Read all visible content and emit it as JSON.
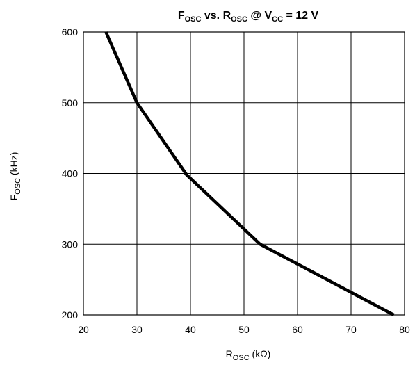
{
  "chart_data": {
    "type": "line",
    "title": {
      "parts": [
        {
          "text": "F",
          "sub": false
        },
        {
          "text": "OSC",
          "sub": true
        },
        {
          "text": " vs. R",
          "sub": false
        },
        {
          "text": "OSC",
          "sub": true
        },
        {
          "text": " @ V",
          "sub": false
        },
        {
          "text": "CC",
          "sub": true
        },
        {
          "text": " = 12 V",
          "sub": false
        }
      ]
    },
    "xlabel": {
      "parts": [
        {
          "text": "R",
          "sub": false
        },
        {
          "text": "OSC",
          "sub": true
        },
        {
          "text": " (kΩ)",
          "sub": false
        }
      ]
    },
    "ylabel": {
      "parts": [
        {
          "text": "F",
          "sub": false
        },
        {
          "text": "OSC",
          "sub": true
        },
        {
          "text": "  (kHz)",
          "sub": false
        }
      ]
    },
    "xlim": [
      20,
      80
    ],
    "ylim": [
      200,
      600
    ],
    "xticks": [
      20,
      30,
      40,
      50,
      60,
      70,
      80
    ],
    "yticks": [
      200,
      300,
      400,
      500,
      600
    ],
    "grid": true,
    "series": [
      {
        "x": [
          24.2,
          30.0,
          39.3,
          53.0,
          78.0
        ],
        "y": [
          600,
          500,
          398,
          300,
          200
        ]
      }
    ]
  }
}
